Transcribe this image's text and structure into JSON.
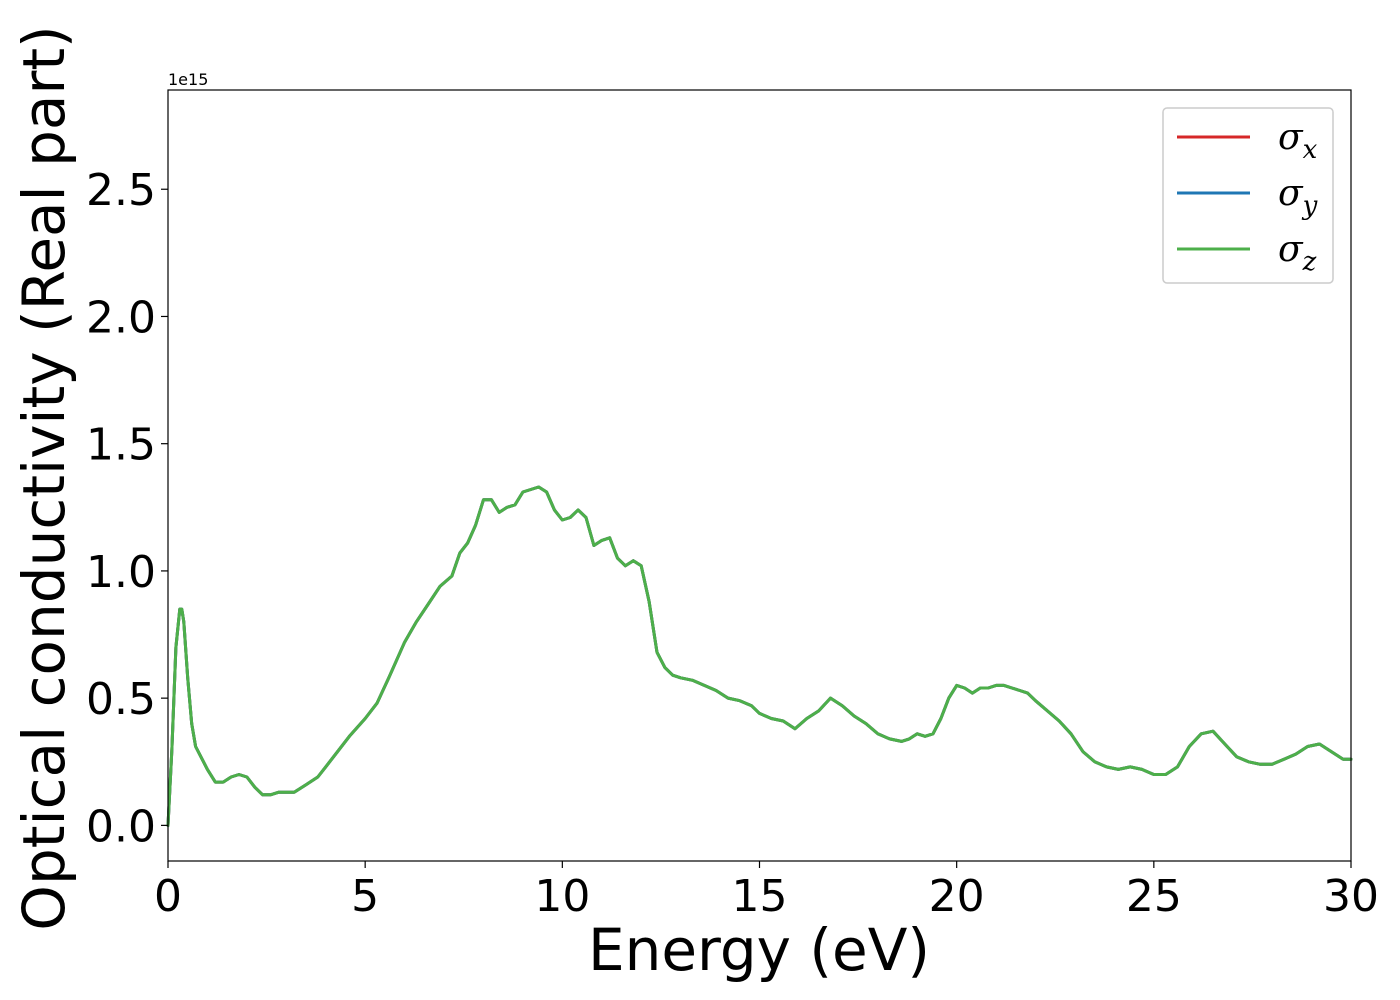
{
  "chart_data": {
    "type": "line",
    "title": "",
    "xlabel": "Energy (eV)",
    "ylabel": "Optical conductivity (Real part)",
    "y_offset_label": "1e15",
    "xlim": [
      0,
      30
    ],
    "ylim": [
      -0.14,
      2.89
    ],
    "xticks": [
      0,
      5,
      10,
      15,
      20,
      25,
      30
    ],
    "xtick_labels": [
      "0",
      "5",
      "10",
      "15",
      "20",
      "25",
      "30"
    ],
    "yticks": [
      0.0,
      0.5,
      1.0,
      1.5,
      2.0,
      2.5
    ],
    "ytick_labels": [
      "0.0",
      "0.5",
      "1.0",
      "1.5",
      "2.0",
      "2.5"
    ],
    "grid": false,
    "legend": "top-right",
    "x": [
      0,
      0.1,
      0.2,
      0.3,
      0.35,
      0.4,
      0.5,
      0.6,
      0.7,
      0.8,
      0.9,
      1.0,
      1.2,
      1.4,
      1.6,
      1.8,
      2.0,
      2.2,
      2.4,
      2.6,
      2.8,
      3.0,
      3.2,
      3.5,
      3.8,
      4.0,
      4.3,
      4.6,
      5.0,
      5.3,
      5.6,
      6.0,
      6.3,
      6.6,
      6.9,
      7.2,
      7.4,
      7.6,
      7.8,
      8.0,
      8.2,
      8.4,
      8.6,
      8.8,
      9.0,
      9.2,
      9.4,
      9.6,
      9.8,
      10.0,
      10.2,
      10.4,
      10.6,
      10.8,
      11.0,
      11.2,
      11.4,
      11.6,
      11.8,
      12.0,
      12.2,
      12.4,
      12.6,
      12.8,
      13.0,
      13.3,
      13.6,
      13.9,
      14.2,
      14.5,
      14.8,
      15.0,
      15.3,
      15.6,
      15.9,
      16.2,
      16.5,
      16.8,
      17.1,
      17.4,
      17.7,
      18.0,
      18.3,
      18.6,
      18.8,
      19.0,
      19.2,
      19.4,
      19.6,
      19.8,
      20.0,
      20.2,
      20.4,
      20.6,
      20.8,
      21.0,
      21.2,
      21.4,
      21.6,
      21.8,
      22.0,
      22.3,
      22.6,
      22.9,
      23.2,
      23.5,
      23.8,
      24.1,
      24.4,
      24.7,
      25.0,
      25.3,
      25.6,
      25.9,
      26.2,
      26.5,
      26.8,
      27.1,
      27.4,
      27.7,
      28.0,
      28.3,
      28.6,
      28.9,
      29.2,
      29.5,
      29.8,
      30.0
    ],
    "series": [
      {
        "name": "σx",
        "color": "#d62728",
        "values": [
          0.0,
          0.3,
          0.7,
          0.85,
          0.85,
          0.8,
          0.58,
          0.4,
          0.31,
          0.28,
          0.25,
          0.22,
          0.17,
          0.17,
          0.19,
          0.2,
          0.19,
          0.15,
          0.12,
          0.12,
          0.13,
          0.13,
          0.13,
          0.16,
          0.19,
          0.23,
          0.29,
          0.35,
          0.42,
          0.48,
          0.58,
          0.72,
          0.8,
          0.87,
          0.94,
          0.98,
          1.07,
          1.11,
          1.18,
          1.28,
          1.28,
          1.23,
          1.25,
          1.26,
          1.31,
          1.32,
          1.33,
          1.31,
          1.24,
          1.2,
          1.21,
          1.24,
          1.21,
          1.1,
          1.12,
          1.13,
          1.05,
          1.02,
          1.04,
          1.02,
          0.88,
          0.68,
          0.62,
          0.59,
          0.58,
          0.57,
          0.55,
          0.53,
          0.5,
          0.49,
          0.47,
          0.44,
          0.42,
          0.41,
          0.38,
          0.42,
          0.45,
          0.5,
          0.47,
          0.43,
          0.4,
          0.36,
          0.34,
          0.33,
          0.34,
          0.36,
          0.35,
          0.36,
          0.42,
          0.5,
          0.55,
          0.54,
          0.52,
          0.54,
          0.54,
          0.55,
          0.55,
          0.54,
          0.53,
          0.52,
          0.49,
          0.45,
          0.41,
          0.36,
          0.29,
          0.25,
          0.23,
          0.22,
          0.23,
          0.22,
          0.2,
          0.2,
          0.23,
          0.31,
          0.36,
          0.37,
          0.32,
          0.27,
          0.25,
          0.24,
          0.24,
          0.26,
          0.28,
          0.31,
          0.32,
          0.29,
          0.26,
          0.26
        ]
      },
      {
        "name": "σy",
        "color": "#1f77b4",
        "values": [
          0.0,
          0.3,
          0.7,
          0.85,
          0.85,
          0.8,
          0.58,
          0.4,
          0.31,
          0.28,
          0.25,
          0.22,
          0.17,
          0.17,
          0.19,
          0.2,
          0.19,
          0.15,
          0.12,
          0.12,
          0.13,
          0.13,
          0.13,
          0.16,
          0.19,
          0.23,
          0.29,
          0.35,
          0.42,
          0.48,
          0.58,
          0.72,
          0.8,
          0.87,
          0.94,
          0.98,
          1.07,
          1.11,
          1.18,
          1.28,
          1.28,
          1.23,
          1.25,
          1.26,
          1.31,
          1.32,
          1.33,
          1.31,
          1.24,
          1.2,
          1.21,
          1.24,
          1.21,
          1.1,
          1.12,
          1.13,
          1.05,
          1.02,
          1.04,
          1.02,
          0.88,
          0.68,
          0.62,
          0.59,
          0.58,
          0.57,
          0.55,
          0.53,
          0.5,
          0.49,
          0.47,
          0.44,
          0.42,
          0.41,
          0.38,
          0.42,
          0.45,
          0.5,
          0.47,
          0.43,
          0.4,
          0.36,
          0.34,
          0.33,
          0.34,
          0.36,
          0.35,
          0.36,
          0.42,
          0.5,
          0.55,
          0.54,
          0.52,
          0.54,
          0.54,
          0.55,
          0.55,
          0.54,
          0.53,
          0.52,
          0.49,
          0.45,
          0.41,
          0.36,
          0.29,
          0.25,
          0.23,
          0.22,
          0.23,
          0.22,
          0.2,
          0.2,
          0.23,
          0.31,
          0.36,
          0.37,
          0.32,
          0.27,
          0.25,
          0.24,
          0.24,
          0.26,
          0.28,
          0.31,
          0.32,
          0.29,
          0.26,
          0.26
        ]
      },
      {
        "name": "σz",
        "color": "#4daf4a",
        "values": [
          0.0,
          0.3,
          0.7,
          0.85,
          0.85,
          0.8,
          0.58,
          0.4,
          0.31,
          0.28,
          0.25,
          0.22,
          0.17,
          0.17,
          0.19,
          0.2,
          0.19,
          0.15,
          0.12,
          0.12,
          0.13,
          0.13,
          0.13,
          0.16,
          0.19,
          0.23,
          0.29,
          0.35,
          0.42,
          0.48,
          0.58,
          0.72,
          0.8,
          0.87,
          0.94,
          0.98,
          1.07,
          1.11,
          1.18,
          1.28,
          1.28,
          1.23,
          1.25,
          1.26,
          1.31,
          1.32,
          1.33,
          1.31,
          1.24,
          1.2,
          1.21,
          1.24,
          1.21,
          1.1,
          1.12,
          1.13,
          1.05,
          1.02,
          1.04,
          1.02,
          0.88,
          0.68,
          0.62,
          0.59,
          0.58,
          0.57,
          0.55,
          0.53,
          0.5,
          0.49,
          0.47,
          0.44,
          0.42,
          0.41,
          0.38,
          0.42,
          0.45,
          0.5,
          0.47,
          0.43,
          0.4,
          0.36,
          0.34,
          0.33,
          0.34,
          0.36,
          0.35,
          0.36,
          0.42,
          0.5,
          0.55,
          0.54,
          0.52,
          0.54,
          0.54,
          0.55,
          0.55,
          0.54,
          0.53,
          0.52,
          0.49,
          0.45,
          0.41,
          0.36,
          0.29,
          0.25,
          0.23,
          0.22,
          0.23,
          0.22,
          0.2,
          0.2,
          0.23,
          0.31,
          0.36,
          0.37,
          0.32,
          0.27,
          0.25,
          0.24,
          0.24,
          0.26,
          0.28,
          0.31,
          0.32,
          0.29,
          0.26,
          0.26
        ]
      }
    ],
    "legend_entries": [
      {
        "symbol": "σ",
        "sub": "x"
      },
      {
        "symbol": "σ",
        "sub": "y"
      },
      {
        "symbol": "σ",
        "sub": "z"
      }
    ]
  }
}
